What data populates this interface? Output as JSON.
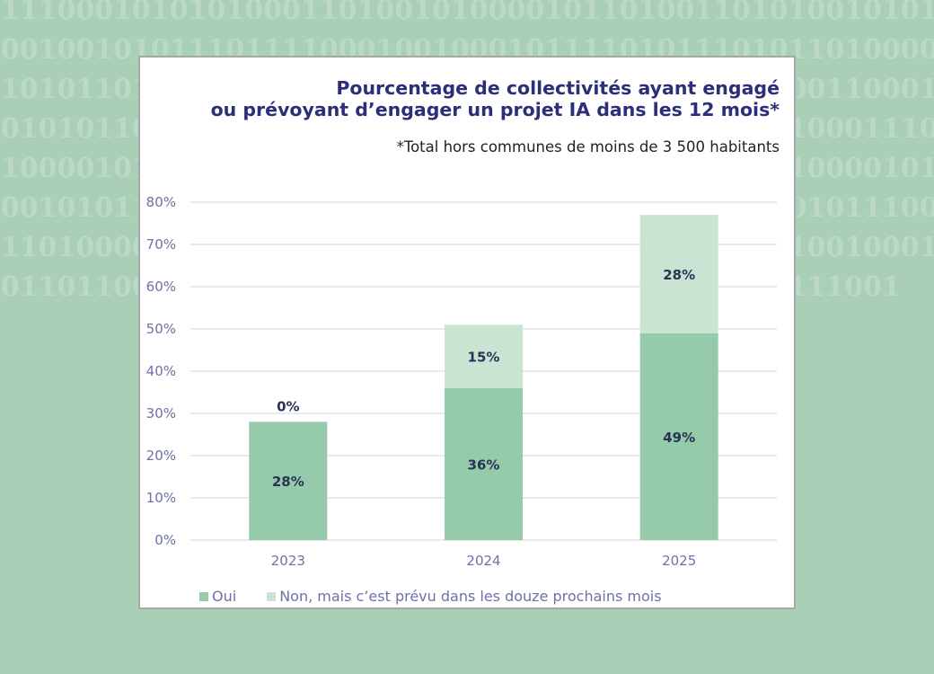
{
  "background_pattern": "01110001010101000110100101000010110100110101001010110001001010111011110001001000101111010111010110100001010101101110001110100000101010101110011010000110001000101011001010110100011011100101000011010101000111010100001011010011010110101011100001010010110100001011000101011010111000101001011101011000010101001011100011101000010110010100101110101001110100111101001000101011011001011110000101011000111010110001010111001",
  "chart_data": {
    "type": "stacked-bar",
    "title": "Pourcentage de collectivités ayant engagé ou prévoyant d’engager un projet IA dans les 12 mois*",
    "title_lines": [
      "Pourcentage de collectivités ayant engagé",
      "ou prévoyant d’engager un projet IA dans les 12 mois*"
    ],
    "subtitle": "*Total hors communes de moins de 3 500 habitants",
    "categories": [
      "2023",
      "2024",
      "2025"
    ],
    "series": [
      {
        "name": "Oui",
        "values": [
          28,
          36,
          49
        ],
        "labels": [
          "28%",
          "36%",
          "49%"
        ],
        "color": "#95cbab"
      },
      {
        "name": "Non, mais c’est prévu dans les douze prochains mois",
        "values": [
          0,
          15,
          28
        ],
        "labels": [
          "0%",
          "15%",
          "28%"
        ],
        "color": "#c9e4d3"
      }
    ],
    "ylim": [
      0,
      80
    ],
    "yticks": [
      "0%",
      "10%",
      "20%",
      "30%",
      "40%",
      "50%",
      "60%",
      "70%",
      "80%"
    ],
    "grid": true,
    "legend_position": "bottom-left",
    "colors": {
      "title": "#2b2e78",
      "axis_text": "#6d71a8",
      "data_label": "#2a3357",
      "grid": "#e3e3e3"
    }
  }
}
